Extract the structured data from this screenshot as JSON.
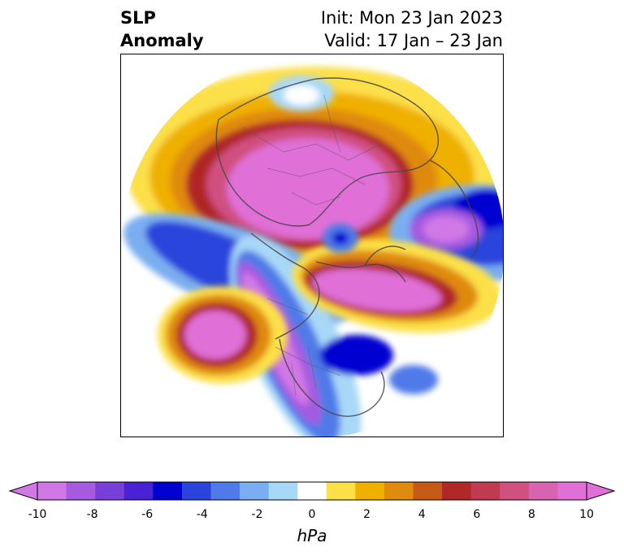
{
  "header": {
    "title_line1": "SLP",
    "title_line2": "Anomaly",
    "init_line": "Init: Mon 23 Jan 2023",
    "valid_line": "Valid: 17 Jan – 23 Jan"
  },
  "colorbar": {
    "ticks": [
      "-10",
      "-8",
      "-6",
      "-4",
      "-2",
      "0",
      "2",
      "4",
      "6",
      "8",
      "10"
    ],
    "unit_label": "hPa",
    "colors": [
      "#d178e6",
      "#a55ae0",
      "#7840d8",
      "#4a22d6",
      "#0000d0",
      "#2a44dc",
      "#4f7ae8",
      "#7aaef0",
      "#a8d8f8",
      "#ffffff",
      "#fce04a",
      "#f0b000",
      "#e08a10",
      "#c85a18",
      "#b02828",
      "#c03a50",
      "#d05080",
      "#d864b0",
      "#e070d8"
    ],
    "extend_low": "#d178e6",
    "extend_high": "#e070d8"
  },
  "map": {
    "projection": "north-polar-stereographic",
    "variable": "sea-level-pressure-anomaly"
  }
}
